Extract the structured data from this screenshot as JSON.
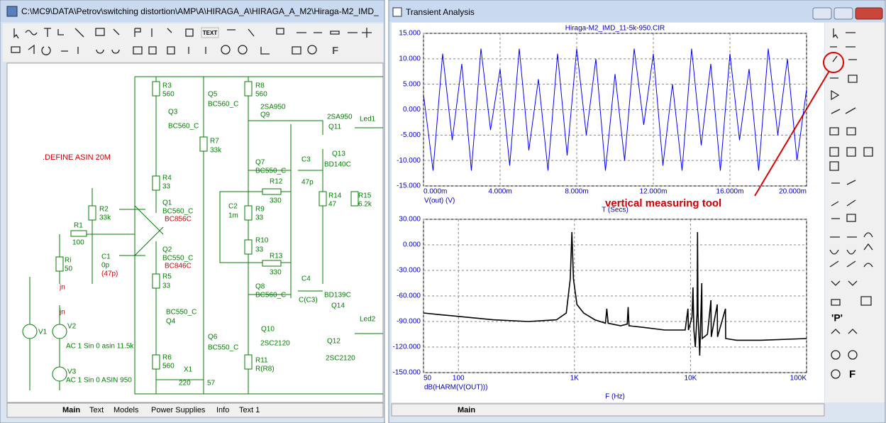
{
  "schematic_window": {
    "title": "C:\\MC9\\DATA\\Petrov\\switching distortion\\AMP\\A\\HIRAGA_A\\HIRAGA_A_M2\\Hiraga-M2_IMD_",
    "toolbar_texts": [
      "TEXT",
      "F"
    ],
    "labels": [
      "R3",
      "560",
      "Q5",
      "BC560_C",
      "Q3",
      "BC560_C",
      "R7",
      "33k",
      "R8",
      "560",
      "2SA950",
      "Q9",
      "2SA950",
      "Q11",
      "Led1",
      ".DEFINE ASIN 20M",
      "Q7",
      "BC550_C",
      "C3",
      "Q13",
      "BD140C",
      "R4",
      "33",
      "47p",
      "R12",
      "330",
      "C2",
      "1m",
      "R9",
      "33",
      "R14",
      "47",
      "R15",
      "6.2k",
      "Q1",
      "BC560_C",
      "BC856C",
      "R2",
      "33k",
      "R1",
      "100",
      "R10",
      "33",
      "Ri",
      "50",
      "C1",
      "0p",
      "(47p)",
      "Q2",
      "BC550_C",
      "BC846C",
      "R13",
      "330",
      "R5",
      "33",
      "jn",
      "C4",
      "BD139C",
      "Q8",
      "BC560_C",
      "C(C3)",
      "Q14",
      "BC550_C",
      "Q4",
      "Led2",
      "jn",
      "V1",
      "V2",
      "AC 1 Sin 0 asin 11.5k",
      "Q10",
      "Q6",
      "BC550_C",
      "Q12",
      "2SC2120",
      "R6",
      "560",
      "R11",
      "R(R8)",
      "2SC2120",
      "X1",
      "220",
      "57",
      "V3",
      "AC 1 Sin 0 ASIN 950"
    ],
    "tabs": [
      "Main",
      "Text",
      "Models",
      "Power Supplies",
      "Info",
      "Text 1"
    ]
  },
  "analysis_window": {
    "title": "Transient Analysis",
    "palette_texts": [
      "'P'",
      "F"
    ],
    "tabs": [
      "Main"
    ],
    "annotation": "vertical measuring tool",
    "chart_data": [
      {
        "type": "line",
        "title": "Hiraga-M2_IMD_11-5k-950.CIR",
        "xlabel": "T (Secs)",
        "x": [
          0,
          0.0005,
          0.001,
          0.0015,
          0.002,
          0.0025,
          0.003,
          0.0035,
          0.004,
          0.0045,
          0.005,
          0.0055,
          0.006,
          0.0065,
          0.007,
          0.0075,
          0.008,
          0.0085,
          0.009,
          0.0095,
          0.01,
          0.0105,
          0.011,
          0.0115,
          0.012,
          0.0125,
          0.013,
          0.0135,
          0.014,
          0.0145,
          0.015,
          0.0155,
          0.016,
          0.0165,
          0.017,
          0.0175,
          0.018,
          0.0185,
          0.019,
          0.0195,
          0.02
        ],
        "series": [
          {
            "name": "V(out) (V)",
            "color": "#0000ff",
            "values": [
              3,
              -12,
              11,
              -6,
              9,
              -12,
              12,
              -4,
              8,
              -11,
              12,
              -8,
              6,
              -12,
              11,
              -9,
              12,
              -5,
              10,
              -12,
              7,
              -10,
              12,
              -3,
              11,
              -11,
              5,
              -12,
              12,
              -7,
              9,
              -12,
              11,
              -6,
              8,
              -12,
              12,
              -5,
              10,
              -10,
              4
            ]
          }
        ],
        "xlim": [
          0,
          0.02
        ],
        "ylim": [
          -15,
          15
        ],
        "xticks": [
          {
            "value": 0,
            "label": "0.000m"
          },
          {
            "value": 0.004,
            "label": "4.000m"
          },
          {
            "value": 0.008,
            "label": "8.000m"
          },
          {
            "value": 0.012,
            "label": "12.000m"
          },
          {
            "value": 0.016,
            "label": "16.000m"
          },
          {
            "value": 0.02,
            "label": "20.000m"
          }
        ],
        "yticks": [
          {
            "value": 15,
            "label": "15.000"
          },
          {
            "value": 10,
            "label": "10.000"
          },
          {
            "value": 5,
            "label": "5.000"
          },
          {
            "value": 0,
            "label": "0.000"
          },
          {
            "value": -5,
            "label": "-5.000"
          },
          {
            "value": -10,
            "label": "-10.000"
          },
          {
            "value": -15,
            "label": "-15.000"
          }
        ],
        "grid": true
      },
      {
        "type": "line",
        "xlabel": "F (Hz)",
        "xscale": "log",
        "x": [
          50,
          70,
          100,
          200,
          400,
          700,
          850,
          920,
          950,
          980,
          1050,
          1200,
          1500,
          1850,
          1900,
          1950,
          2500,
          2850,
          2900,
          2950,
          4000,
          6000,
          9000,
          9500,
          9600,
          10300,
          10500,
          10700,
          11000,
          11400,
          11500,
          11600,
          12000,
          12500,
          12600,
          14000,
          15000,
          15100,
          17000,
          17100,
          20000,
          20100,
          25000,
          40000,
          100000
        ],
        "series": [
          {
            "name": "dB(HARM(V(OUT)))",
            "color": "#000000",
            "values": [
              -80,
              -82,
              -84,
              -88,
              -90,
              -88,
              -80,
              -40,
              15,
              -40,
              -70,
              -80,
              -88,
              -92,
              -75,
              -92,
              -95,
              -93,
              -73,
              -95,
              -97,
              -100,
              -100,
              -75,
              -100,
              -85,
              -50,
              -100,
              -120,
              -80,
              15,
              -80,
              -130,
              -45,
              -110,
              -105,
              -65,
              -108,
              -70,
              -108,
              -75,
              -110,
              -112,
              -112,
              -110
            ]
          }
        ],
        "xlim": [
          50,
          100000
        ],
        "ylim": [
          -150,
          30
        ],
        "xticks": [
          50,
          100,
          {
            "value": 1000,
            "label": "1K"
          },
          {
            "value": 10000,
            "label": "10K"
          },
          {
            "value": 100000,
            "label": "100K"
          }
        ],
        "yticks": [
          {
            "value": 30,
            "label": "30.000"
          },
          {
            "value": 0,
            "label": "0.000"
          },
          {
            "value": -30,
            "label": "-30.000"
          },
          {
            "value": -60,
            "label": "-60.000"
          },
          {
            "value": -90,
            "label": "-90.000"
          },
          {
            "value": -120,
            "label": "-120.000"
          },
          {
            "value": -150,
            "label": "-150.000"
          }
        ],
        "grid": true
      }
    ]
  }
}
